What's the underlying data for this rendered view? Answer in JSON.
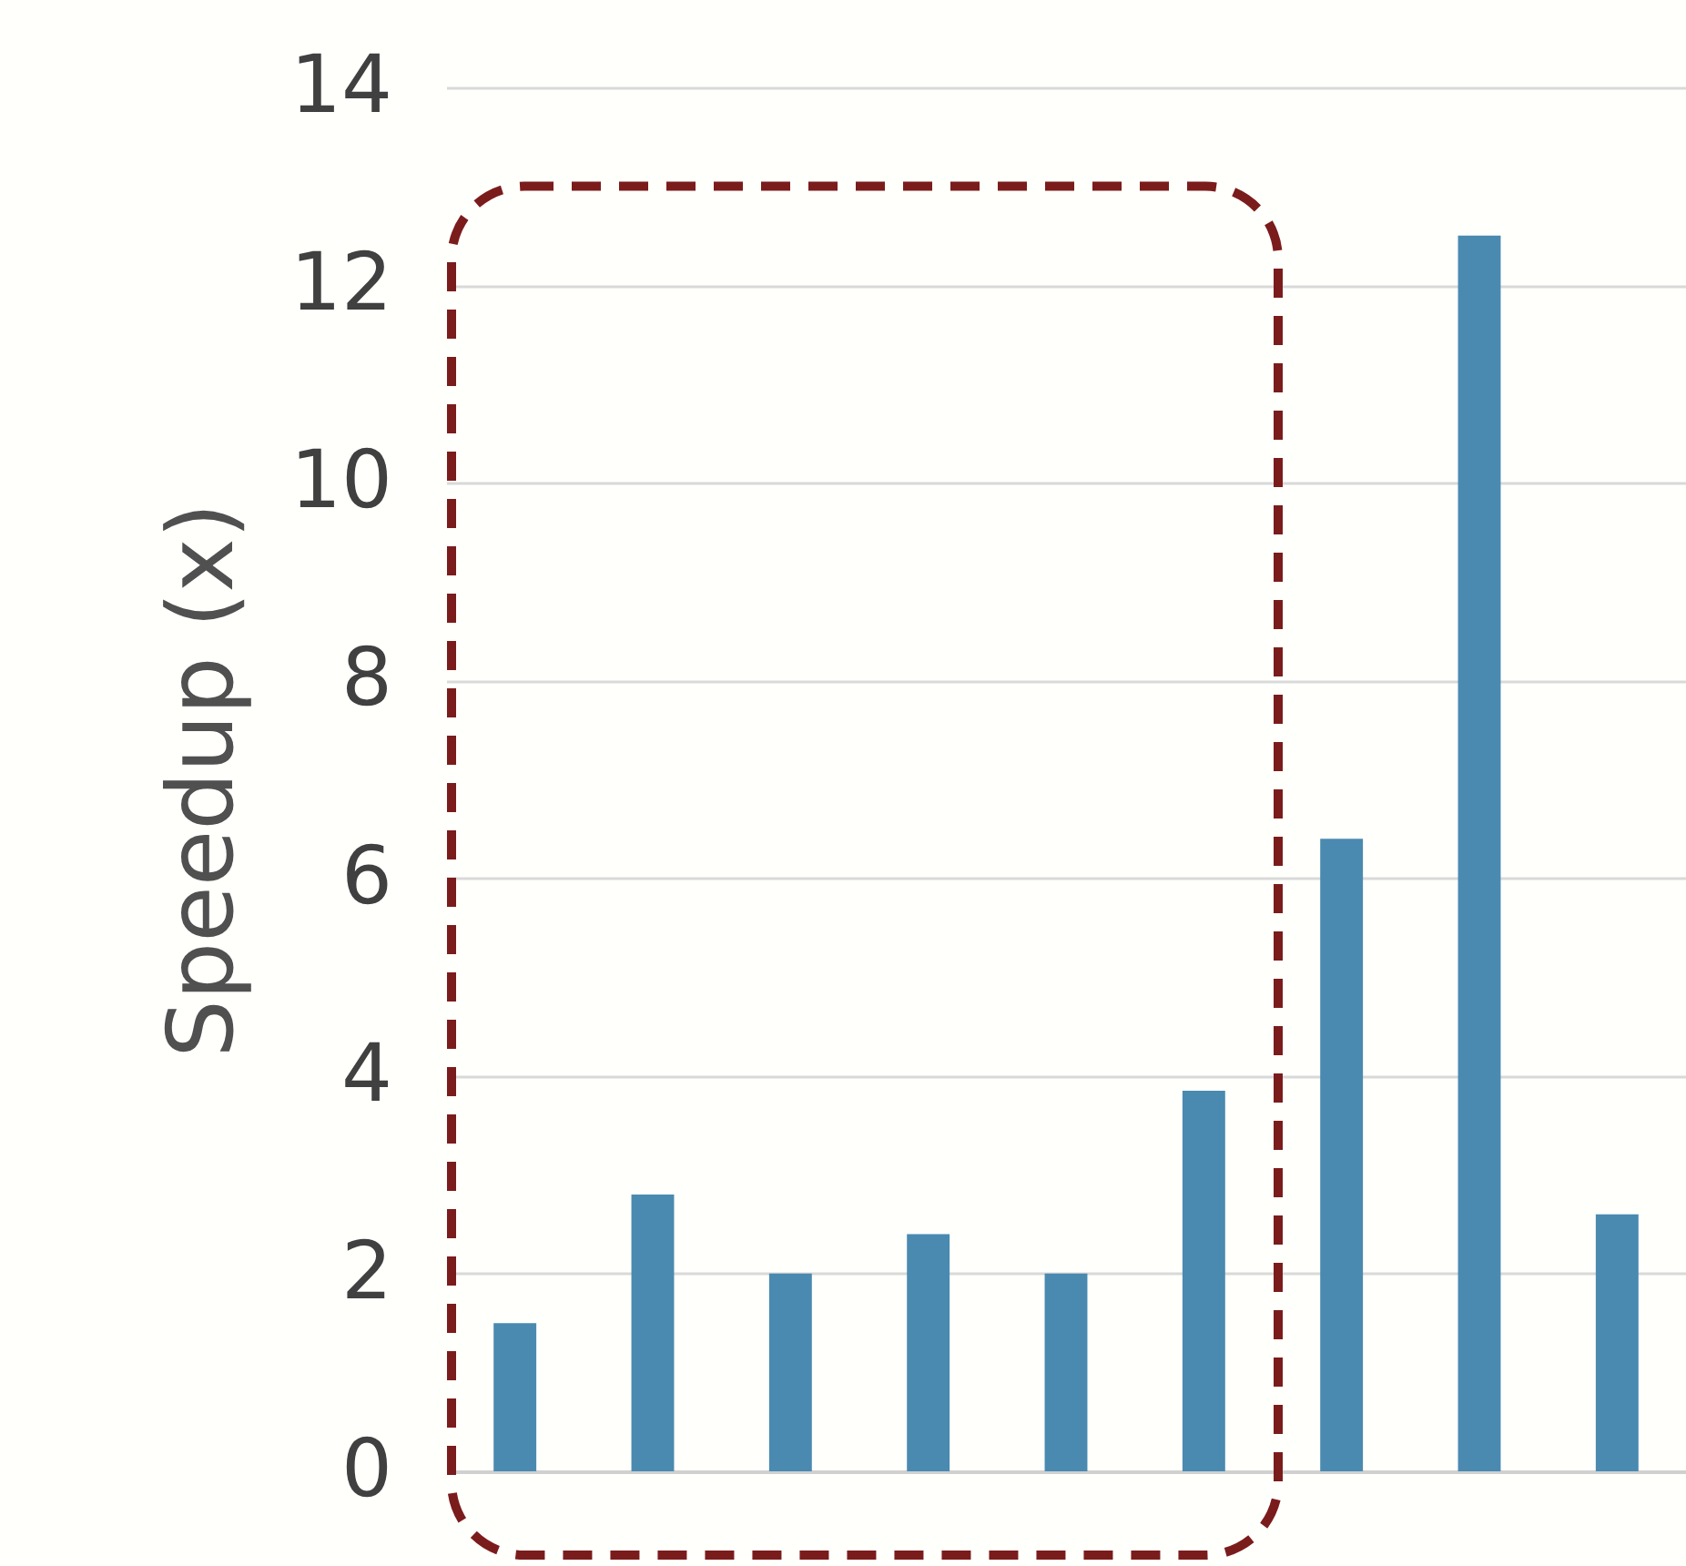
{
  "chart_data": {
    "type": "bar",
    "ylabel": "Speedup (x)",
    "categories": [
      null,
      null,
      null,
      null,
      null,
      null,
      null,
      null,
      null
    ],
    "values": [
      1.5,
      2.8,
      2.0,
      2.4,
      2.0,
      3.85,
      6.4,
      12.5,
      2.6
    ],
    "color": "#4a8ab0",
    "ylim": [
      0,
      14
    ],
    "yticks": [
      0,
      2,
      4,
      6,
      8,
      10,
      12,
      14
    ],
    "grid": "y",
    "tick_labels": "y"
  }
}
